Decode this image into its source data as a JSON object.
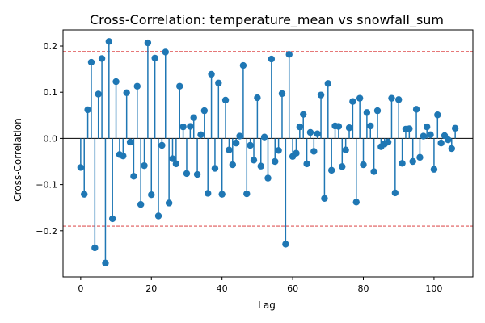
{
  "chart_data": {
    "type": "stem",
    "title": "Cross-Correlation: temperature_mean vs snowfall_sum",
    "xlabel": "Lag",
    "ylabel": "Cross-Correlation",
    "xlim": [
      -5,
      111
    ],
    "ylim": [
      -0.3,
      0.235
    ],
    "xticks": [
      0,
      20,
      40,
      60,
      80,
      100
    ],
    "yticks": [
      -0.2,
      -0.1,
      0.0,
      0.1,
      0.2
    ],
    "xtick_labels": [
      "0",
      "20",
      "40",
      "60",
      "80",
      "100"
    ],
    "ytick_labels": [
      "−0.2",
      "−0.1",
      "0.0",
      "0.1",
      "0.2"
    ],
    "confidence_bounds": [
      0.188,
      -0.19
    ],
    "colors": {
      "stem": "#1f77b4",
      "marker": "#1f77b4",
      "bound": "#d62728",
      "baseline": "#000000"
    },
    "grid": false,
    "x": [
      0,
      1,
      2,
      3,
      4,
      5,
      6,
      7,
      8,
      9,
      10,
      11,
      12,
      13,
      14,
      15,
      16,
      17,
      18,
      19,
      20,
      21,
      22,
      23,
      24,
      25,
      26,
      27,
      28,
      29,
      30,
      31,
      32,
      33,
      34,
      35,
      36,
      37,
      38,
      39,
      40,
      41,
      42,
      43,
      44,
      45,
      46,
      47,
      48,
      49,
      50,
      51,
      52,
      53,
      54,
      55,
      56,
      57,
      58,
      59,
      60,
      61,
      62,
      63,
      64,
      65,
      66,
      67,
      68,
      69,
      70,
      71,
      72,
      73,
      74,
      75,
      76,
      77,
      78,
      79,
      80,
      81,
      82,
      83,
      84,
      85,
      86,
      87,
      88,
      89,
      90,
      91,
      92,
      93,
      94,
      95,
      96,
      97,
      98,
      99,
      100,
      101,
      102,
      103,
      104,
      105,
      106
    ],
    "values": [
      -0.063,
      -0.121,
      0.062,
      0.165,
      -0.237,
      0.096,
      0.173,
      -0.27,
      0.21,
      -0.174,
      0.123,
      -0.035,
      -0.038,
      0.099,
      -0.008,
      -0.082,
      0.113,
      -0.143,
      -0.059,
      0.207,
      -0.122,
      0.174,
      -0.168,
      -0.015,
      0.187,
      -0.14,
      -0.044,
      -0.055,
      0.113,
      0.025,
      -0.076,
      0.026,
      0.045,
      -0.078,
      0.008,
      0.06,
      -0.119,
      0.139,
      -0.065,
      0.12,
      -0.121,
      0.083,
      -0.025,
      -0.057,
      -0.01,
      0.005,
      0.158,
      -0.12,
      -0.015,
      -0.047,
      0.088,
      -0.06,
      0.003,
      -0.086,
      0.172,
      -0.05,
      -0.026,
      0.097,
      -0.229,
      0.182,
      -0.039,
      -0.032,
      0.025,
      0.052,
      -0.055,
      0.013,
      -0.028,
      0.01,
      0.094,
      -0.13,
      0.119,
      -0.069,
      0.027,
      0.026,
      -0.061,
      -0.025,
      0.023,
      0.08,
      -0.138,
      0.087,
      -0.057,
      0.056,
      0.027,
      -0.072,
      0.06,
      -0.018,
      -0.012,
      -0.008,
      0.087,
      -0.118,
      0.084,
      -0.054,
      0.02,
      0.021,
      -0.05,
      0.063,
      -0.041,
      0.005,
      0.025,
      0.008,
      -0.067,
      0.051,
      -0.01,
      0.006,
      -0.003,
      -0.022,
      0.022
    ]
  }
}
